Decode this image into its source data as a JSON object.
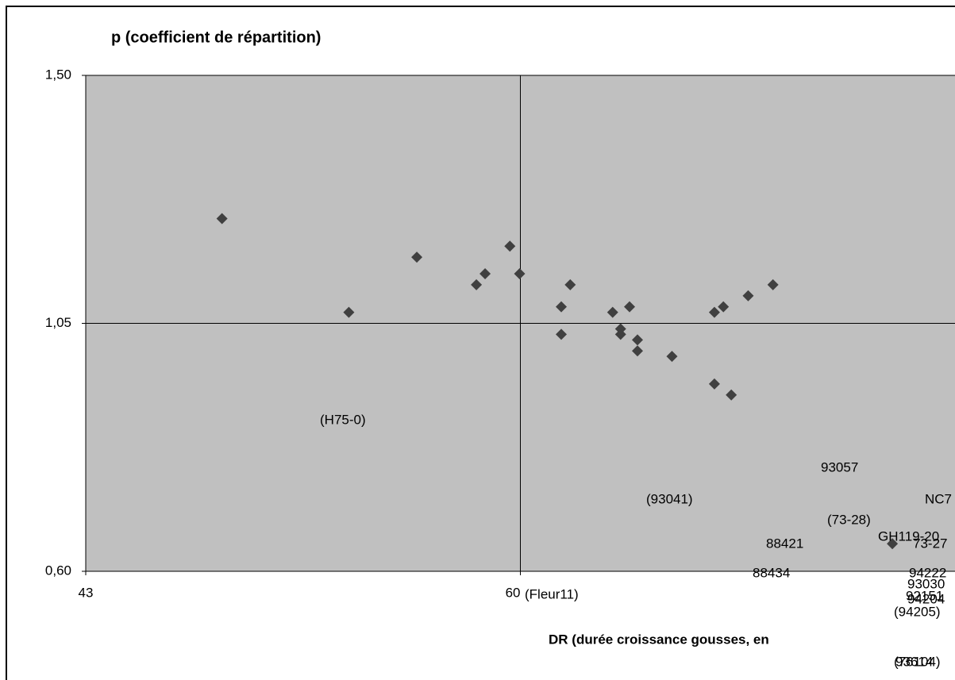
{
  "chart_data": {
    "type": "scatter",
    "title": "p (coefficient de répartition)",
    "x_label": "DR (durée croissance gousses, en",
    "color": "#404040",
    "plot_color": "#c0c0c0",
    "x": [
      48.33,
      53.29,
      55.95,
      58.28,
      58.62,
      59.59,
      59.97,
      61.6,
      61.95,
      61.6,
      63.61,
      63.92,
      63.92,
      64.27,
      64.58,
      64.58,
      65.93,
      67.59,
      67.94,
      68.91,
      69.88,
      67.59,
      68.25,
      74.55
    ],
    "values": [
      1.24,
      1.07,
      1.17,
      1.12,
      1.14,
      1.19,
      1.14,
      1.08,
      1.12,
      1.03,
      1.07,
      1.04,
      1.03,
      1.08,
      1.02,
      1.0,
      0.99,
      1.07,
      1.08,
      1.1,
      1.12,
      0.94,
      0.92,
      0.65
    ],
    "xlim": [
      43,
      77
    ],
    "xticks": [
      43,
      60
    ],
    "ylim": [
      0.6,
      1.5
    ],
    "yticks": [
      {
        "value": 0.6,
        "label": "0,60"
      },
      {
        "value": 1.05,
        "label": "1,05"
      },
      {
        "value": 1.5,
        "label": "1,50"
      }
    ],
    "crosshair": {
      "x": 60,
      "y": 1.05
    },
    "annotations": [
      "(H75-0)",
      "93057",
      "(93041)",
      "NC7",
      "(73-28)",
      "GH119-20",
      "73-27",
      "88421",
      "88434",
      "94222",
      "93030",
      "92151",
      "94204",
      "(94205)",
      "(Fleur11)",
      "(76104)",
      "93614"
    ]
  }
}
